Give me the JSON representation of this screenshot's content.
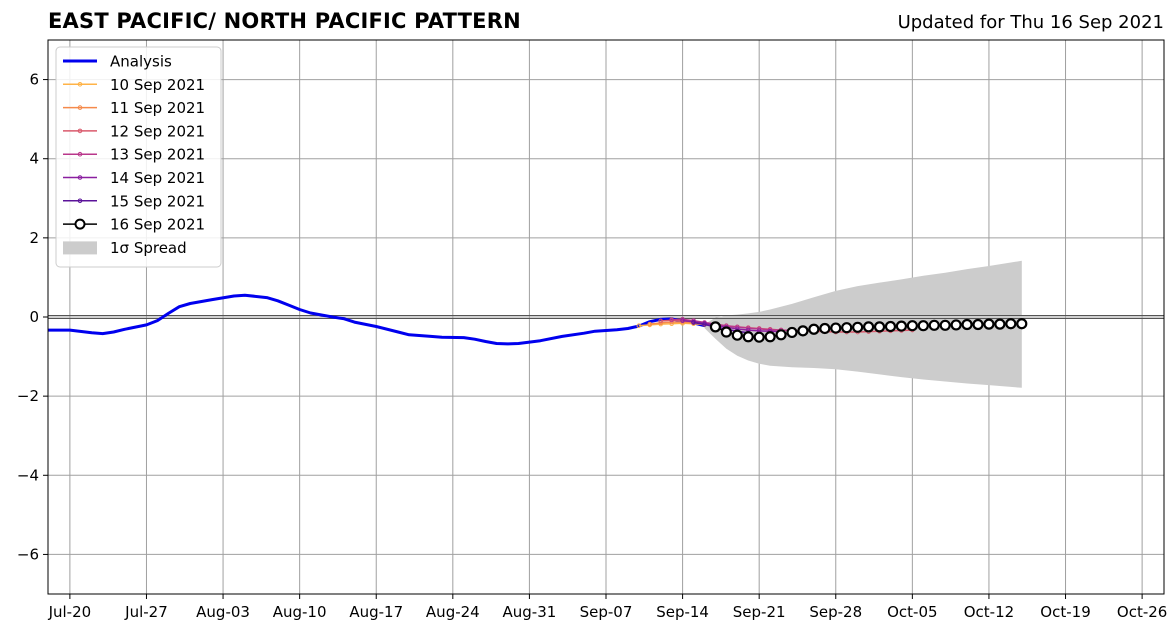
{
  "header": {
    "title": "EAST PACIFIC/ NORTH PACIFIC PATTERN",
    "updated": "Updated for Thu 16 Sep 2021"
  },
  "colors": {
    "analysis": "#0000ee",
    "spread": "#cccccc",
    "grid": "#a0a0a0",
    "forecasts": [
      "#ffb347",
      "#f58a4b",
      "#d9596c",
      "#b9378b",
      "#8a1fa0",
      "#5b139a",
      "#000000"
    ]
  },
  "chart_data": {
    "type": "line",
    "title": "EAST PACIFIC/ NORTH PACIFIC PATTERN",
    "xlabel": "",
    "ylabel": "",
    "x_axis_type": "date",
    "xlim": [
      "2021-07-18",
      "2021-10-28"
    ],
    "ylim": [
      -7,
      7
    ],
    "y_ticks": [
      -6,
      -4,
      -2,
      0,
      2,
      4,
      6
    ],
    "x_ticks": [
      {
        "date": "2021-07-20",
        "label": "Jul-20"
      },
      {
        "date": "2021-07-27",
        "label": "Jul-27"
      },
      {
        "date": "2021-08-03",
        "label": "Aug-03"
      },
      {
        "date": "2021-08-10",
        "label": "Aug-10"
      },
      {
        "date": "2021-08-17",
        "label": "Aug-17"
      },
      {
        "date": "2021-08-24",
        "label": "Aug-24"
      },
      {
        "date": "2021-08-31",
        "label": "Aug-31"
      },
      {
        "date": "2021-09-07",
        "label": "Sep-07"
      },
      {
        "date": "2021-09-14",
        "label": "Sep-14"
      },
      {
        "date": "2021-09-21",
        "label": "Sep-21"
      },
      {
        "date": "2021-09-28",
        "label": "Sep-28"
      },
      {
        "date": "2021-10-05",
        "label": "Oct-05"
      },
      {
        "date": "2021-10-12",
        "label": "Oct-12"
      },
      {
        "date": "2021-10-19",
        "label": "Oct-19"
      },
      {
        "date": "2021-10-26",
        "label": "Oct-26"
      }
    ],
    "grid": true,
    "legend_position": "top-left",
    "analysis": {
      "name": "Analysis",
      "points": [
        [
          "2021-07-18",
          -0.33
        ],
        [
          "2021-07-20",
          -0.33
        ],
        [
          "2021-07-22",
          -0.4
        ],
        [
          "2021-07-23",
          -0.42
        ],
        [
          "2021-07-24",
          -0.38
        ],
        [
          "2021-07-25",
          -0.31
        ],
        [
          "2021-07-27",
          -0.2
        ],
        [
          "2021-07-28",
          -0.09
        ],
        [
          "2021-07-29",
          0.09
        ],
        [
          "2021-07-30",
          0.26
        ],
        [
          "2021-07-31",
          0.34
        ],
        [
          "2021-08-02",
          0.44
        ],
        [
          "2021-08-04",
          0.53
        ],
        [
          "2021-08-05",
          0.55
        ],
        [
          "2021-08-07",
          0.49
        ],
        [
          "2021-08-08",
          0.41
        ],
        [
          "2021-08-09",
          0.3
        ],
        [
          "2021-08-10",
          0.19
        ],
        [
          "2021-08-11",
          0.1
        ],
        [
          "2021-08-12",
          0.05
        ],
        [
          "2021-08-13",
          0.0
        ],
        [
          "2021-08-14",
          -0.04
        ],
        [
          "2021-08-15",
          -0.13
        ],
        [
          "2021-08-17",
          -0.24
        ],
        [
          "2021-08-19",
          -0.38
        ],
        [
          "2021-08-20",
          -0.45
        ],
        [
          "2021-08-22",
          -0.49
        ],
        [
          "2021-08-23",
          -0.51
        ],
        [
          "2021-08-25",
          -0.52
        ],
        [
          "2021-08-26",
          -0.56
        ],
        [
          "2021-08-27",
          -0.62
        ],
        [
          "2021-08-28",
          -0.67
        ],
        [
          "2021-08-29",
          -0.68
        ],
        [
          "2021-08-30",
          -0.67
        ],
        [
          "2021-09-01",
          -0.6
        ],
        [
          "2021-09-03",
          -0.49
        ],
        [
          "2021-09-05",
          -0.41
        ],
        [
          "2021-09-06",
          -0.36
        ],
        [
          "2021-09-08",
          -0.32
        ],
        [
          "2021-09-09",
          -0.29
        ],
        [
          "2021-09-10",
          -0.23
        ],
        [
          "2021-09-11",
          -0.12
        ],
        [
          "2021-09-12",
          -0.06
        ],
        [
          "2021-09-13",
          -0.05
        ],
        [
          "2021-09-14",
          -0.1
        ],
        [
          "2021-09-15",
          -0.15
        ],
        [
          "2021-09-16",
          -0.22
        ]
      ]
    },
    "forecasts": [
      {
        "name": "10 Sep 2021",
        "start": "2021-09-10",
        "values": [
          -0.22,
          -0.2,
          -0.18,
          -0.17,
          -0.16,
          -0.17,
          -0.19,
          -0.22
        ]
      },
      {
        "name": "11 Sep 2021",
        "start": "2021-09-11",
        "values": [
          -0.18,
          -0.15,
          -0.13,
          -0.13,
          -0.15,
          -0.18,
          -0.21
        ]
      },
      {
        "name": "12 Sep 2021",
        "start": "2021-09-12",
        "values": [
          -0.1,
          -0.08,
          -0.09,
          -0.12,
          -0.16,
          -0.2,
          -0.23,
          -0.25,
          -0.27,
          -0.29,
          -0.31,
          -0.33,
          -0.34,
          -0.35,
          -0.36,
          -0.37,
          -0.38,
          -0.38,
          -0.38,
          -0.37,
          -0.36,
          -0.35,
          -0.34,
          -0.33
        ]
      },
      {
        "name": "13 Sep 2021",
        "start": "2021-09-13",
        "values": [
          -0.07,
          -0.06,
          -0.09,
          -0.14,
          -0.18,
          -0.22,
          -0.25,
          -0.28,
          -0.3,
          -0.32,
          -0.33,
          -0.34,
          -0.35
        ]
      },
      {
        "name": "14 Sep 2021",
        "start": "2021-09-14",
        "values": [
          -0.09,
          -0.12,
          -0.16,
          -0.21,
          -0.26,
          -0.3,
          -0.33,
          -0.35,
          -0.36,
          -0.37
        ]
      },
      {
        "name": "15 Sep 2021",
        "start": "2021-09-15",
        "values": [
          -0.14,
          -0.19,
          -0.25,
          -0.31,
          -0.36,
          -0.4
        ]
      },
      {
        "name": "16 Sep 2021",
        "start": "2021-09-17",
        "values": [
          -0.25,
          -0.38,
          -0.46,
          -0.5,
          -0.51,
          -0.5,
          -0.45,
          -0.39,
          -0.35,
          -0.31,
          -0.29,
          -0.28,
          -0.27,
          -0.26,
          -0.25,
          -0.25,
          -0.24,
          -0.23,
          -0.22,
          -0.22,
          -0.21,
          -0.21,
          -0.2,
          -0.19,
          -0.19,
          -0.18,
          -0.18,
          -0.17,
          -0.17
        ]
      }
    ],
    "spread": {
      "name": "1σ Spread",
      "upper": [
        [
          "2021-09-16",
          -0.18
        ],
        [
          "2021-09-17",
          -0.02
        ],
        [
          "2021-09-18",
          0.04
        ],
        [
          "2021-09-19",
          0.06
        ],
        [
          "2021-09-20",
          0.09
        ],
        [
          "2021-09-21",
          0.13
        ],
        [
          "2021-09-22",
          0.19
        ],
        [
          "2021-09-24",
          0.33
        ],
        [
          "2021-09-26",
          0.5
        ],
        [
          "2021-09-28",
          0.66
        ],
        [
          "2021-09-30",
          0.78
        ],
        [
          "2021-10-02",
          0.87
        ],
        [
          "2021-10-04",
          0.95
        ],
        [
          "2021-10-06",
          1.04
        ],
        [
          "2021-10-08",
          1.12
        ],
        [
          "2021-10-10",
          1.21
        ],
        [
          "2021-10-12",
          1.29
        ],
        [
          "2021-10-15",
          1.42
        ]
      ],
      "lower": [
        [
          "2021-09-16",
          -0.28
        ],
        [
          "2021-09-17",
          -0.55
        ],
        [
          "2021-09-18",
          -0.8
        ],
        [
          "2021-09-19",
          -0.98
        ],
        [
          "2021-09-20",
          -1.1
        ],
        [
          "2021-09-21",
          -1.18
        ],
        [
          "2021-09-22",
          -1.23
        ],
        [
          "2021-09-24",
          -1.27
        ],
        [
          "2021-09-26",
          -1.29
        ],
        [
          "2021-09-28",
          -1.32
        ],
        [
          "2021-09-30",
          -1.38
        ],
        [
          "2021-10-02",
          -1.45
        ],
        [
          "2021-10-04",
          -1.52
        ],
        [
          "2021-10-06",
          -1.58
        ],
        [
          "2021-10-08",
          -1.63
        ],
        [
          "2021-10-10",
          -1.68
        ],
        [
          "2021-10-12",
          -1.72
        ],
        [
          "2021-10-15",
          -1.79
        ]
      ]
    },
    "legend": [
      "Analysis",
      "10 Sep 2021",
      "11 Sep 2021",
      "12 Sep 2021",
      "13 Sep 2021",
      "14 Sep 2021",
      "15 Sep 2021",
      "16 Sep 2021",
      "1σ Spread"
    ]
  }
}
